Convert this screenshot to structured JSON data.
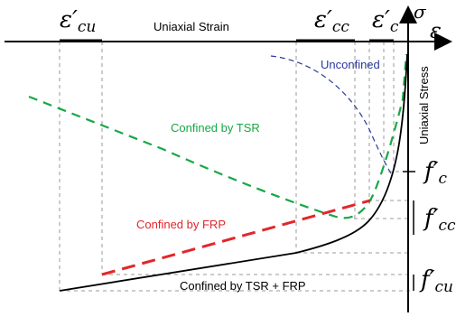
{
  "labels": {
    "eps_cu": "ε′",
    "eps_cu_sub": "cu",
    "eps_cc": "ε′",
    "eps_cc_sub": "cc",
    "eps_c": "ε′",
    "eps_c_sub": "c",
    "sigma": "σ",
    "epsilon": "ε",
    "uniaxial_strain": "Uniaxial Strain",
    "uniaxial_stress": "Uniaxial Stress",
    "fc": "f′",
    "fc_sub": "c",
    "fcc": "f′",
    "fcc_sub": "cc",
    "fcu": "f′",
    "fcu_sub": "cu"
  },
  "curves": {
    "unconfined": "Unconfined",
    "tsr": "Confined by TSR",
    "frp": "Confined by FRP",
    "tsr_frp": "Confined by TSR + FRP"
  },
  "colors": {
    "unconfined": "#2b3a9a",
    "tsr": "#17a845",
    "frp": "#e2262b",
    "black": "#000000",
    "guide": "#9a9a9a"
  }
}
